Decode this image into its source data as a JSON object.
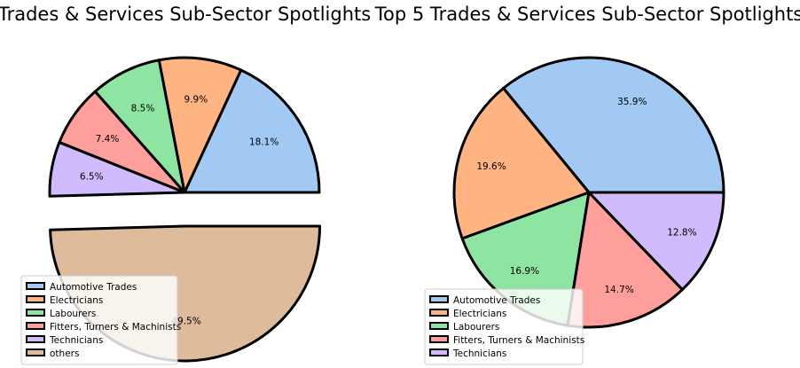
{
  "chart_data": [
    {
      "type": "pie",
      "title": "Trades & Services Sub-Sector Spotlights",
      "labels": [
        "Automotive Trades",
        "Electricians",
        "Labourers",
        "Fitters, Turners & Machinists",
        "Technicians",
        "others"
      ],
      "values": [
        18.1,
        9.9,
        8.5,
        7.4,
        6.5,
        49.5
      ],
      "value_labels": [
        "18.1%",
        "9.9%",
        "8.5%",
        "7.4%",
        "6.5%",
        "49.5%"
      ],
      "colors": [
        "#a1c9f4",
        "#ffb482",
        "#8de5a1",
        "#ff9f9b",
        "#d0bbff",
        "#debb9b"
      ],
      "exploded": [
        false,
        false,
        false,
        false,
        false,
        true
      ],
      "start_angle_deg": 0,
      "direction": "counterclockwise",
      "legend_position": "lower-left"
    },
    {
      "type": "pie",
      "title": "Top 5 Trades & Services Sub-Sector Spotlights",
      "labels": [
        "Automotive Trades",
        "Electricians",
        "Labourers",
        "Fitters, Turners & Machinists",
        "Technicians"
      ],
      "values": [
        35.9,
        19.6,
        16.9,
        14.7,
        12.8
      ],
      "value_labels": [
        "35.9%",
        "19.6%",
        "16.9%",
        "14.7%",
        "12.8%"
      ],
      "colors": [
        "#a1c9f4",
        "#ffb482",
        "#8de5a1",
        "#ff9f9b",
        "#d0bbff"
      ],
      "exploded": [
        false,
        false,
        false,
        false,
        false
      ],
      "start_angle_deg": 0,
      "direction": "counterclockwise",
      "legend_position": "lower-left"
    }
  ]
}
